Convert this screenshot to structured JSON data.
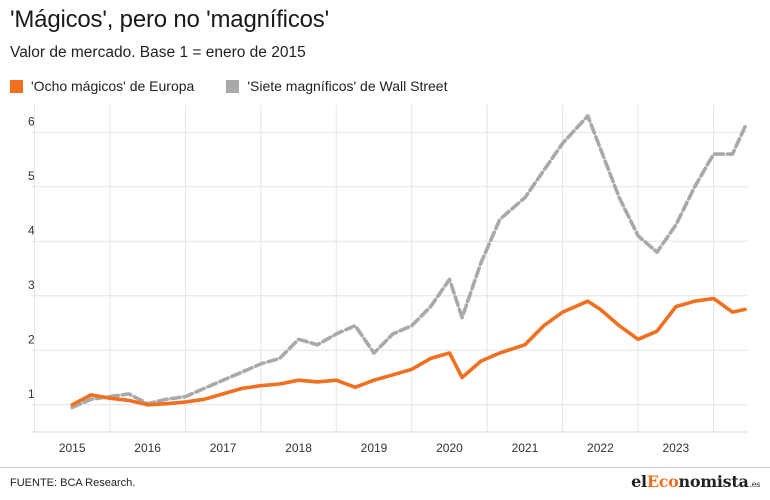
{
  "title": "'Mágicos', pero no 'magníficos'",
  "subtitle": "Valor de mercado. Base 1 = enero de 2015",
  "source": "FUENTE: BCA Research.",
  "logo": {
    "prefix": "el",
    "accent": "Eco",
    "rest": "nomista",
    "suffix": ".es"
  },
  "colors": {
    "europe": "#f07020",
    "wallstreet": "#a9a9a9",
    "grid": "#e4e4e4"
  },
  "chart_data": {
    "type": "line",
    "title": "'Mágicos', pero no 'magníficos'",
    "subtitle": "Valor de mercado. Base 1 = enero de 2015",
    "xlabel": "",
    "ylabel": "",
    "x_ticks": [
      "2015",
      "2016",
      "2017",
      "2018",
      "2019",
      "2020",
      "2021",
      "2022",
      "2023"
    ],
    "y_ticks": [
      1,
      2,
      3,
      4,
      5,
      6
    ],
    "ylim": [
      0.5,
      6.5
    ],
    "grid": true,
    "legend_position": "top-left",
    "series": [
      {
        "name": "'Ocho mágicos' de Europa",
        "style": "solid",
        "color": "#f07020",
        "points": [
          [
            "2015-01",
            1.0
          ],
          [
            "2015-04",
            1.18
          ],
          [
            "2015-07",
            1.12
          ],
          [
            "2015-10",
            1.08
          ],
          [
            "2016-01",
            1.0
          ],
          [
            "2016-04",
            1.02
          ],
          [
            "2016-07",
            1.05
          ],
          [
            "2016-10",
            1.1
          ],
          [
            "2017-01",
            1.2
          ],
          [
            "2017-04",
            1.3
          ],
          [
            "2017-07",
            1.35
          ],
          [
            "2017-10",
            1.38
          ],
          [
            "2018-01",
            1.45
          ],
          [
            "2018-04",
            1.42
          ],
          [
            "2018-07",
            1.45
          ],
          [
            "2018-10",
            1.32
          ],
          [
            "2019-01",
            1.45
          ],
          [
            "2019-04",
            1.55
          ],
          [
            "2019-07",
            1.65
          ],
          [
            "2019-10",
            1.85
          ],
          [
            "2020-01",
            1.95
          ],
          [
            "2020-03",
            1.5
          ],
          [
            "2020-06",
            1.8
          ],
          [
            "2020-09",
            1.95
          ],
          [
            "2021-01",
            2.1
          ],
          [
            "2021-04",
            2.45
          ],
          [
            "2021-07",
            2.7
          ],
          [
            "2021-11",
            2.9
          ],
          [
            "2022-01",
            2.75
          ],
          [
            "2022-04",
            2.45
          ],
          [
            "2022-07",
            2.2
          ],
          [
            "2022-10",
            2.35
          ],
          [
            "2023-01",
            2.8
          ],
          [
            "2023-04",
            2.9
          ],
          [
            "2023-07",
            2.95
          ],
          [
            "2023-10",
            2.7
          ],
          [
            "2023-12",
            2.75
          ]
        ]
      },
      {
        "name": "'Siete magníficos' de Wall Street",
        "style": "dashed",
        "color": "#a9a9a9",
        "points": [
          [
            "2015-01",
            0.95
          ],
          [
            "2015-04",
            1.1
          ],
          [
            "2015-07",
            1.15
          ],
          [
            "2015-10",
            1.2
          ],
          [
            "2016-01",
            1.02
          ],
          [
            "2016-04",
            1.1
          ],
          [
            "2016-07",
            1.15
          ],
          [
            "2016-10",
            1.3
          ],
          [
            "2017-01",
            1.45
          ],
          [
            "2017-04",
            1.6
          ],
          [
            "2017-07",
            1.75
          ],
          [
            "2017-10",
            1.85
          ],
          [
            "2018-01",
            2.2
          ],
          [
            "2018-04",
            2.1
          ],
          [
            "2018-07",
            2.3
          ],
          [
            "2018-10",
            2.45
          ],
          [
            "2019-01",
            1.95
          ],
          [
            "2019-04",
            2.3
          ],
          [
            "2019-07",
            2.45
          ],
          [
            "2019-10",
            2.8
          ],
          [
            "2020-01",
            3.3
          ],
          [
            "2020-03",
            2.6
          ],
          [
            "2020-06",
            3.6
          ],
          [
            "2020-09",
            4.4
          ],
          [
            "2021-01",
            4.8
          ],
          [
            "2021-04",
            5.3
          ],
          [
            "2021-07",
            5.8
          ],
          [
            "2021-11",
            6.3
          ],
          [
            "2022-01",
            5.7
          ],
          [
            "2022-04",
            4.8
          ],
          [
            "2022-07",
            4.1
          ],
          [
            "2022-10",
            3.8
          ],
          [
            "2023-01",
            4.3
          ],
          [
            "2023-04",
            5.0
          ],
          [
            "2023-07",
            5.6
          ],
          [
            "2023-10",
            5.6
          ],
          [
            "2023-12",
            6.1
          ]
        ]
      }
    ]
  }
}
